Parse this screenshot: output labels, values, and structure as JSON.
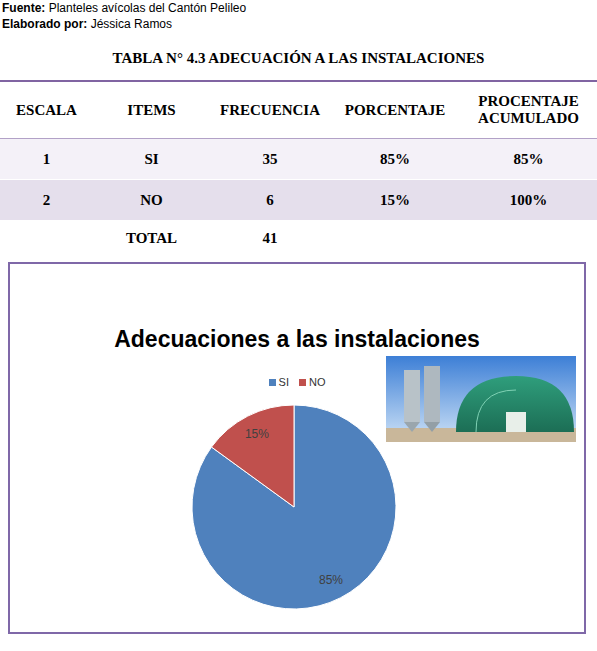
{
  "header": {
    "lines": [
      {
        "label": "Fuente:",
        "text": "Planteles avícolas del Cantón Pelileo"
      },
      {
        "label": "Elaborado por:",
        "text": "Jéssica Ramos"
      }
    ]
  },
  "table": {
    "title": "TABLA N° 4.3 ADECUACIÓN A LAS INSTALACIONES",
    "columns": [
      "ESCALA",
      "ITEMS",
      "FRECUENCIA",
      "PORCENTAJE",
      "PROCENTAJE ACUMULADO"
    ],
    "rows": [
      [
        1,
        "SI",
        35,
        "85%",
        "85%"
      ],
      [
        2,
        "NO",
        6,
        "15%",
        "100%"
      ],
      [
        null,
        "TOTAL",
        41,
        null,
        null
      ]
    ]
  },
  "chart_data": {
    "type": "pie",
    "title": "Adecuaciones a las instalaciones",
    "categories": [
      "SI",
      "NO"
    ],
    "values": [
      85,
      15
    ],
    "value_labels": [
      "85%",
      "15%"
    ],
    "colors": [
      "#4f81bd",
      "#c0504d"
    ],
    "legend": "top",
    "data_labels": true
  }
}
